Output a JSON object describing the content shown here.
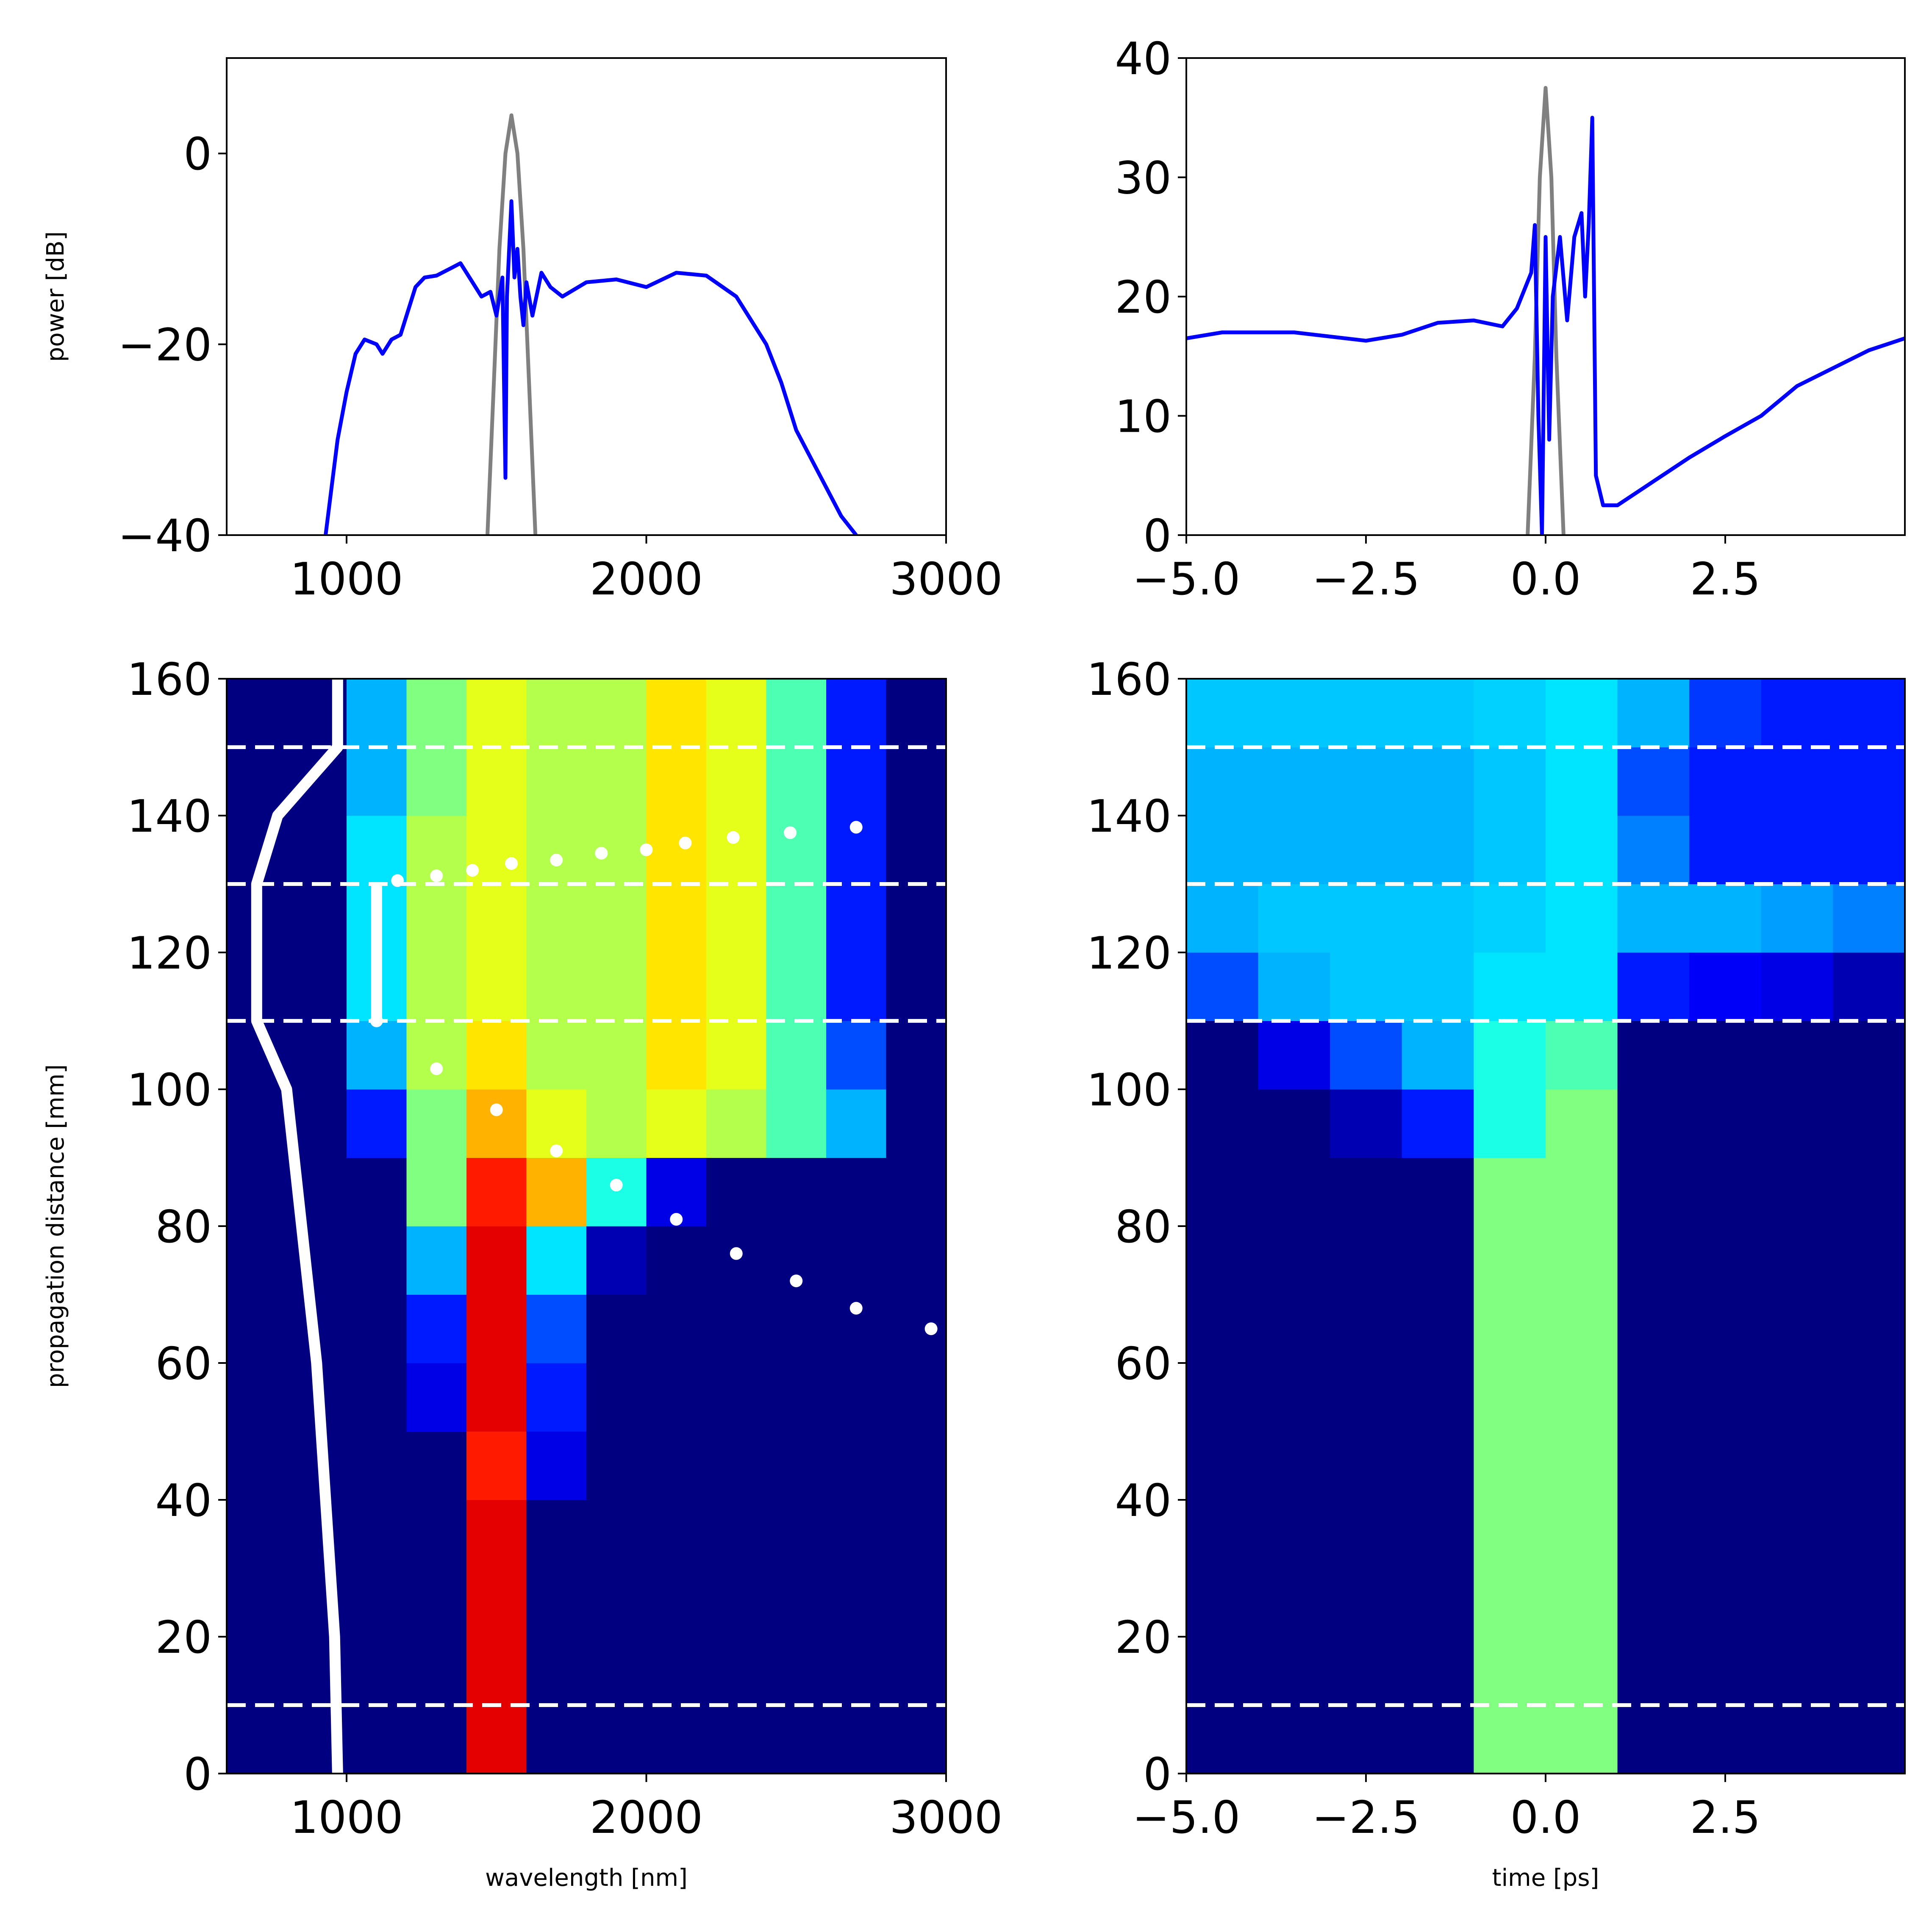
{
  "chart_data": [
    {
      "type": "line",
      "ylabel": "power [dB]",
      "xlim": [
        600,
        3000
      ],
      "xticks": [
        1000,
        2000,
        3000
      ],
      "ylim": [
        -40,
        10
      ],
      "yticks": [
        {
          "value": -40,
          "label": "−40"
        },
        {
          "value": -20,
          "label": "−20"
        },
        0
      ],
      "series": [
        {
          "color": "#808080",
          "x": [
            1470,
            1490,
            1510,
            1530,
            1550,
            1570,
            1590,
            1610,
            1630
          ],
          "y": [
            -40,
            -25,
            -10,
            0,
            4,
            0,
            -10,
            -25,
            -40
          ]
        },
        {
          "color": "#0000ff",
          "x": [
            930,
            950,
            970,
            1000,
            1030,
            1060,
            1100,
            1120,
            1150,
            1180,
            1200,
            1230,
            1260,
            1300,
            1350,
            1380,
            1420,
            1450,
            1480,
            1500,
            1520,
            1530,
            1535,
            1550,
            1560,
            1570,
            1580,
            1590,
            1600,
            1620,
            1650,
            1680,
            1720,
            1800,
            1900,
            2000,
            2100,
            2200,
            2300,
            2400,
            2450,
            2500,
            2550,
            2600,
            2650,
            2700
          ],
          "y": [
            -40,
            -35,
            -30,
            -25,
            -21,
            -19.5,
            -20,
            -21,
            -19.5,
            -19,
            -17,
            -14,
            -13,
            -12.8,
            -12,
            -11.5,
            -13.5,
            -15,
            -14.5,
            -17,
            -13,
            -34,
            -15,
            -5,
            -13,
            -10,
            -15,
            -18,
            -13.5,
            -17,
            -12.5,
            -14,
            -15,
            -13.5,
            -13.2,
            -14,
            -12.5,
            -12.8,
            -15,
            -20,
            -24,
            -29,
            -32,
            -35,
            -38,
            -40
          ]
        }
      ]
    },
    {
      "type": "line",
      "xlim": [
        -5,
        5
      ],
      "xticks": [
        {
          "value": -5,
          "label": "−5.0"
        },
        {
          "value": -2.5,
          "label": "−2.5"
        },
        {
          "value": 0,
          "label": "0.0"
        },
        2.5
      ],
      "ylim": [
        0,
        40
      ],
      "yticks": [
        0,
        10,
        20,
        30,
        40
      ],
      "series": [
        {
          "color": "#808080",
          "x": [
            -0.25,
            -0.15,
            -0.08,
            0,
            0.08,
            0.15,
            0.25
          ],
          "y": [
            0,
            15,
            30,
            37.5,
            30,
            15,
            0
          ]
        },
        {
          "color": "#0000ff",
          "x": [
            -5,
            -4.5,
            -3.5,
            -2.5,
            -2,
            -1.5,
            -1,
            -0.6,
            -0.4,
            -0.2,
            -0.15,
            -0.1,
            -0.05,
            0,
            0.05,
            0.1,
            0.2,
            0.3,
            0.4,
            0.5,
            0.55,
            0.6,
            0.65,
            0.7,
            0.8,
            1.0,
            1.5,
            2,
            2.5,
            3,
            3.5,
            4,
            4.5,
            5
          ],
          "y": [
            16.5,
            17,
            17,
            16.3,
            16.8,
            17.8,
            18,
            17.5,
            19,
            22,
            26,
            10,
            0,
            25,
            8,
            20,
            25,
            18,
            25,
            27,
            20,
            26,
            35,
            5,
            2.5,
            2.5,
            4.5,
            6.5,
            8.3,
            10,
            12.5,
            14,
            15.5,
            16.5
          ]
        }
      ]
    },
    {
      "type": "heatmap",
      "xlabel": "wavelength [nm]",
      "ylabel": "propagation distance [mm]",
      "xlim": [
        600,
        3000
      ],
      "xticks": [
        1000,
        2000,
        3000
      ],
      "ylim": [
        0,
        160
      ],
      "yticks": [
        0,
        20,
        40,
        60,
        80,
        100,
        120,
        140,
        160
      ],
      "xbins": [
        600,
        800,
        1000,
        1200,
        1400,
        1600,
        1800,
        2000,
        2200,
        2400,
        2600,
        2800,
        3000
      ],
      "ybins": [
        0,
        10,
        20,
        30,
        40,
        50,
        60,
        70,
        80,
        90,
        100,
        110,
        120,
        130,
        140,
        150,
        160
      ],
      "z": [
        [
          0,
          0,
          0,
          0,
          0.9,
          0,
          0,
          0,
          0,
          0,
          0,
          0
        ],
        [
          0,
          0,
          0,
          0,
          0.9,
          0,
          0,
          0,
          0,
          0,
          0,
          0
        ],
        [
          0,
          0,
          0,
          0,
          0.9,
          0,
          0,
          0,
          0,
          0,
          0,
          0
        ],
        [
          0,
          0,
          0,
          0,
          0.9,
          0,
          0,
          0,
          0,
          0,
          0,
          0
        ],
        [
          0,
          0,
          0,
          0,
          0.85,
          0.1,
          0,
          0,
          0,
          0,
          0,
          0
        ],
        [
          0,
          0,
          0,
          0.1,
          0.9,
          0.15,
          0,
          0,
          0,
          0,
          0,
          0
        ],
        [
          0,
          0,
          0,
          0.15,
          0.9,
          0.2,
          0,
          0,
          0,
          0,
          0,
          0
        ],
        [
          0,
          0,
          0,
          0.3,
          0.9,
          0.35,
          0.05,
          0,
          0,
          0,
          0,
          0
        ],
        [
          0,
          0,
          0,
          0.5,
          0.85,
          0.7,
          0.4,
          0.1,
          0,
          0,
          0,
          0
        ],
        [
          0,
          0,
          0.15,
          0.5,
          0.7,
          0.6,
          0.55,
          0.6,
          0.55,
          0.45,
          0.3,
          0
        ],
        [
          0,
          0,
          0.3,
          0.55,
          0.65,
          0.55,
          0.55,
          0.65,
          0.6,
          0.45,
          0.2,
          0
        ],
        [
          0,
          0,
          0.35,
          0.55,
          0.6,
          0.55,
          0.55,
          0.65,
          0.6,
          0.45,
          0.15,
          0
        ],
        [
          0,
          0,
          0.35,
          0.55,
          0.6,
          0.55,
          0.55,
          0.65,
          0.6,
          0.45,
          0.15,
          0
        ],
        [
          0,
          0,
          0.35,
          0.55,
          0.6,
          0.55,
          0.55,
          0.65,
          0.6,
          0.45,
          0.15,
          0
        ],
        [
          0,
          0,
          0.3,
          0.5,
          0.6,
          0.55,
          0.55,
          0.65,
          0.6,
          0.45,
          0.15,
          0
        ],
        [
          0,
          0,
          0.3,
          0.5,
          0.6,
          0.55,
          0.55,
          0.65,
          0.6,
          0.45,
          0.15,
          0
        ]
      ],
      "hlines": [
        10,
        110,
        130,
        150
      ],
      "overlays": [
        {
          "style": "line",
          "color": "#ffffff",
          "x": [
            970,
            960,
            900,
            800,
            700,
            700,
            770,
            970,
            970
          ],
          "y": [
            0,
            20,
            60,
            100,
            110,
            130,
            140,
            150,
            160
          ]
        },
        {
          "style": "line",
          "color": "#ffffff",
          "x": [
            1100,
            1100
          ],
          "y": [
            110,
            130
          ]
        },
        {
          "style": "dots",
          "color": "#ffffff",
          "x": [
            1100,
            1300,
            1500,
            1700,
            1900,
            2100,
            2300,
            2500,
            2700,
            2950
          ],
          "y": [
            110,
            103,
            97,
            91,
            86,
            81,
            76,
            72,
            68,
            65
          ]
        },
        {
          "style": "dots",
          "color": "#ffffff",
          "x": [
            1170,
            1300,
            1420,
            1550,
            1700,
            1850,
            2000,
            2130,
            2290,
            2480,
            2700
          ],
          "y": [
            130.5,
            131.2,
            132,
            133,
            133.5,
            134.5,
            135,
            136,
            136.8,
            137.5,
            138.3
          ]
        }
      ]
    },
    {
      "type": "heatmap",
      "xlabel": "time [ps]",
      "xlim": [
        -5,
        5
      ],
      "xticks": [
        {
          "value": -5,
          "label": "−5.0"
        },
        {
          "value": -2.5,
          "label": "−2.5"
        },
        {
          "value": 0,
          "label": "0.0"
        },
        2.5
      ],
      "ylim": [
        0,
        160
      ],
      "yticks": [
        0,
        20,
        40,
        60,
        80,
        100,
        120,
        140,
        160
      ],
      "xbins": [
        -5,
        -4,
        -3,
        -2,
        -1,
        0,
        1,
        2,
        3,
        4,
        5
      ],
      "ybins": [
        0,
        10,
        20,
        30,
        40,
        50,
        60,
        70,
        80,
        90,
        100,
        110,
        120,
        130,
        140,
        150,
        160
      ],
      "z": [
        [
          0,
          0,
          0,
          0,
          0.5,
          0.5,
          0,
          0,
          0,
          0
        ],
        [
          0,
          0,
          0,
          0,
          0.5,
          0.5,
          0,
          0,
          0,
          0
        ],
        [
          0,
          0,
          0,
          0,
          0.5,
          0.5,
          0,
          0,
          0,
          0
        ],
        [
          0,
          0,
          0,
          0,
          0.5,
          0.5,
          0,
          0,
          0,
          0
        ],
        [
          0,
          0,
          0,
          0,
          0.5,
          0.5,
          0,
          0,
          0,
          0
        ],
        [
          0,
          0,
          0,
          0,
          0.5,
          0.5,
          0,
          0,
          0,
          0
        ],
        [
          0,
          0,
          0,
          0,
          0.5,
          0.5,
          0,
          0,
          0,
          0
        ],
        [
          0,
          0,
          0,
          0,
          0.5,
          0.5,
          0,
          0,
          0,
          0
        ],
        [
          0,
          0,
          0,
          0,
          0.5,
          0.5,
          0,
          0,
          0,
          0
        ],
        [
          0,
          0,
          0.05,
          0.15,
          0.4,
          0.5,
          0,
          0,
          0,
          0
        ],
        [
          0,
          0.1,
          0.2,
          0.3,
          0.4,
          0.45,
          0,
          0,
          0,
          0
        ],
        [
          0.2,
          0.3,
          0.32,
          0.32,
          0.35,
          0.35,
          0.15,
          0.12,
          0.1,
          0.05
        ],
        [
          0.3,
          0.32,
          0.32,
          0.32,
          0.33,
          0.35,
          0.3,
          0.3,
          0.28,
          0.25
        ],
        [
          0.3,
          0.3,
          0.3,
          0.3,
          0.32,
          0.35,
          0.25,
          0.15,
          0.15,
          0.15
        ],
        [
          0.3,
          0.3,
          0.3,
          0.3,
          0.32,
          0.35,
          0.2,
          0.15,
          0.15,
          0.15
        ],
        [
          0.32,
          0.32,
          0.32,
          0.32,
          0.33,
          0.35,
          0.3,
          0.18,
          0.15,
          0.15
        ]
      ],
      "hlines": [
        10,
        110,
        130,
        150
      ]
    }
  ]
}
